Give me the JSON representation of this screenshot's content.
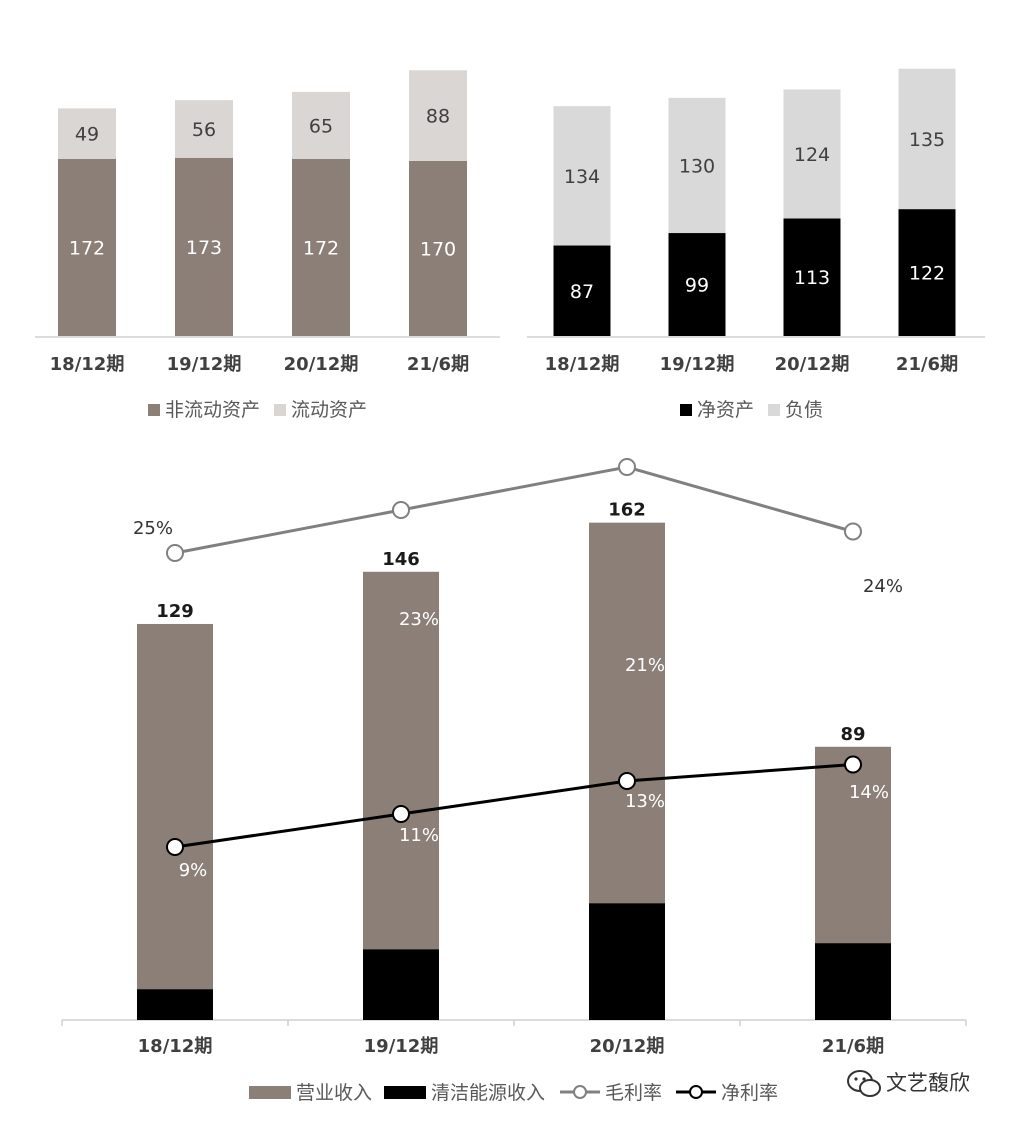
{
  "chart_data": [
    {
      "type": "bar",
      "stacked": true,
      "categories": [
        "18/12期",
        "19/12期",
        "20/12期",
        "21/6期"
      ],
      "series": [
        {
          "name": "非流动资产",
          "values": [
            172,
            173,
            172,
            170
          ],
          "color": "#8b7f78"
        },
        {
          "name": "流动资产",
          "values": [
            49,
            56,
            65,
            88
          ],
          "color": "#d9d6d3"
        }
      ],
      "data_labels": true,
      "legend": "bottom"
    },
    {
      "type": "bar",
      "stacked": true,
      "categories": [
        "18/12期",
        "19/12期",
        "20/12期",
        "21/6期"
      ],
      "series": [
        {
          "name": "净资产",
          "values": [
            87,
            99,
            113,
            122
          ],
          "color": "#000000"
        },
        {
          "name": "负债",
          "values": [
            134,
            130,
            124,
            135
          ],
          "color": "#d9d9d9"
        }
      ],
      "data_labels": true,
      "legend": "bottom"
    },
    {
      "type": "bar+line",
      "categories": [
        "18/12期",
        "19/12期",
        "20/12期",
        "21/6期"
      ],
      "bar_series": [
        {
          "name": "营业收入",
          "values": [
            129,
            146,
            162,
            89
          ],
          "color": "#8b7f78"
        },
        {
          "name": "清洁能源收入",
          "values": [
            10,
            23,
            38,
            25
          ],
          "color": "#000000"
        }
      ],
      "line_series": [
        {
          "name": "毛利率",
          "values": [
            25,
            23,
            21,
            24
          ],
          "labels": [
            "25%",
            "23%",
            "21%",
            "24%"
          ],
          "unit": "%",
          "color": "#808080"
        },
        {
          "name": "净利率",
          "values": [
            9,
            11,
            13,
            14
          ],
          "labels": [
            "9%",
            "11%",
            "13%",
            "14%"
          ],
          "unit": "%",
          "color": "#000000"
        }
      ],
      "total_labels": [
        129,
        146,
        162,
        89
      ],
      "legend": "bottom"
    }
  ],
  "watermark": {
    "text": "文艺馥欣",
    "icon": "wechat-icon"
  }
}
